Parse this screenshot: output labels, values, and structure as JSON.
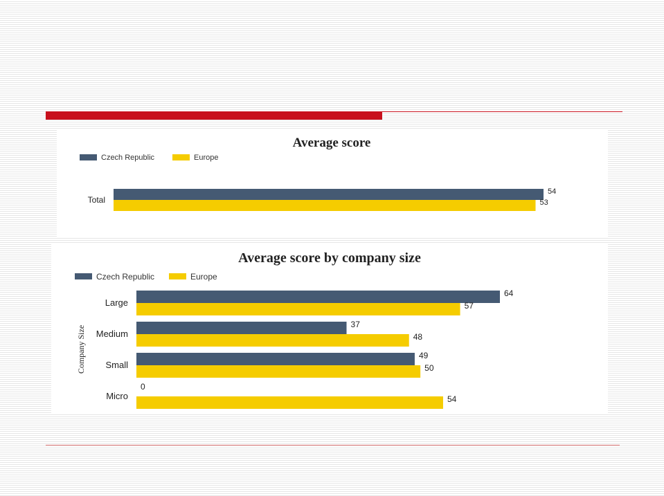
{
  "colors": {
    "czech": "#455a73",
    "europe": "#f5cc00",
    "accent_red": "#c8101d"
  },
  "chart_data": [
    {
      "type": "bar",
      "orientation": "horizontal",
      "title": "Average score",
      "categories": [
        "Total"
      ],
      "series": [
        {
          "name": "Czech Republic",
          "values": [
            54
          ]
        },
        {
          "name": "Europe",
          "values": [
            53
          ]
        }
      ],
      "legend_position": "top-left",
      "grid": false,
      "xlim": [
        0,
        54
      ]
    },
    {
      "type": "bar",
      "orientation": "horizontal",
      "title": "Average score by company size",
      "ylabel": "Company Size",
      "categories": [
        "Large",
        "Medium",
        "Small",
        "Micro"
      ],
      "series": [
        {
          "name": "Czech Republic",
          "values": [
            64,
            37,
            49,
            0
          ]
        },
        {
          "name": "Europe",
          "values": [
            57,
            48,
            50,
            54
          ]
        }
      ],
      "legend_position": "top-left",
      "grid": false,
      "xlim": [
        0,
        64
      ]
    }
  ]
}
